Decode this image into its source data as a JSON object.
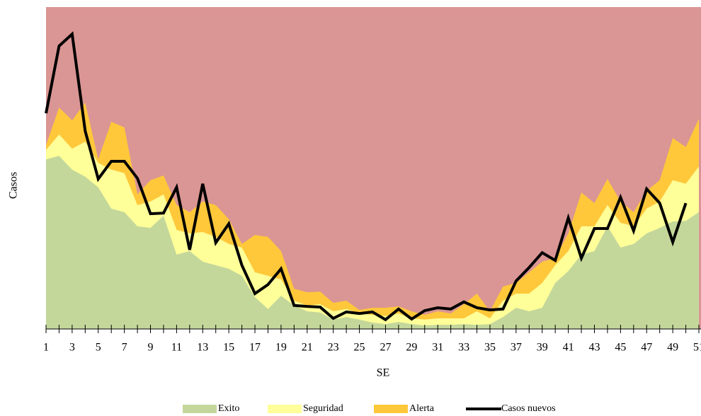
{
  "chart_data": {
    "type": "area",
    "stacked": true,
    "x_label": "SE",
    "y_label": "Casos",
    "x": [
      1,
      2,
      3,
      4,
      5,
      6,
      7,
      8,
      9,
      10,
      11,
      12,
      13,
      14,
      15,
      16,
      17,
      18,
      19,
      20,
      21,
      22,
      23,
      24,
      25,
      26,
      27,
      28,
      29,
      30,
      31,
      32,
      33,
      34,
      35,
      36,
      37,
      38,
      39,
      40,
      41,
      42,
      43,
      44,
      45,
      46,
      47,
      48,
      49,
      50,
      51
    ],
    "xlim": [
      1,
      51
    ],
    "xticks": [
      1,
      3,
      5,
      7,
      9,
      11,
      13,
      15,
      17,
      19,
      21,
      23,
      25,
      27,
      29,
      31,
      33,
      35,
      37,
      39,
      41,
      43,
      45,
      47,
      49,
      51
    ],
    "x_minor_ticks": [
      2,
      4,
      6,
      8,
      10,
      12,
      14,
      16,
      18,
      20,
      22,
      24,
      26,
      28,
      30,
      32,
      34,
      36,
      38,
      40,
      42,
      44,
      46,
      48,
      50
    ],
    "ylim": [
      0,
      100
    ],
    "plot_background": "#da9694",
    "legend": "bottom",
    "series": [
      {
        "name": "Exito",
        "color": "#c4d79b",
        "values": [
          52.7,
          53.8,
          49.5,
          47.3,
          44,
          37.4,
          36.3,
          31.9,
          31.4,
          35.2,
          23.1,
          24.2,
          20.9,
          19.8,
          18.7,
          16.5,
          9.9,
          6.2,
          10.3,
          7.3,
          5.5,
          5.1,
          2.9,
          3.7,
          2.9,
          2,
          1.5,
          2.2,
          1.5,
          1.1,
          1.3,
          1.3,
          1.5,
          1.3,
          1.5,
          3.7,
          6.6,
          5.5,
          6.6,
          14.3,
          18,
          23.1,
          24.2,
          31.9,
          25.3,
          26.4,
          29.7,
          31.4,
          33.4,
          33.6,
          36.3
        ]
      },
      {
        "name": "Seguridad",
        "color": "#ffff99",
        "values": [
          2.9,
          6.6,
          6.5,
          10.9,
          7.6,
          12.1,
          12.1,
          6.6,
          8.2,
          6.6,
          7.7,
          5.5,
          9.2,
          8.8,
          7.7,
          8.8,
          7.7,
          10.3,
          5.1,
          1.5,
          1.8,
          2.6,
          2.6,
          2.5,
          1.9,
          2.4,
          2.5,
          2.6,
          1.8,
          1.8,
          2,
          2,
          1.8,
          4.2,
          1.8,
          5.1,
          4.4,
          5.5,
          7.7,
          5.5,
          6.2,
          8.8,
          7.7,
          6.6,
          7.7,
          5.5,
          7.7,
          8.2,
          12.8,
          11.5,
          14.2
        ]
      },
      {
        "name": "Alerta",
        "color": "#ffc83a",
        "values": [
          1.5,
          8.4,
          8.8,
          12.1,
          1.1,
          14.9,
          14.2,
          3.3,
          6.6,
          5.9,
          7.7,
          6.6,
          9.5,
          9.9,
          7.7,
          1.1,
          11.6,
          12.1,
          8.8,
          3.7,
          4.1,
          3.9,
          2.6,
          2.6,
          1.1,
          2.2,
          2.6,
          2.2,
          2.2,
          1.5,
          2.2,
          1.5,
          4.4,
          5.5,
          2.2,
          4.4,
          3.3,
          6.6,
          6.6,
          2.2,
          5.5,
          10.5,
          7.2,
          8.1,
          6.6,
          4.4,
          5.5,
          6.6,
          13.1,
          11.4,
          14.8
        ]
      },
      {
        "name": "Casos nuevos",
        "type": "line",
        "color": "#000000",
        "values": [
          67,
          87.9,
          91.6,
          61.5,
          46.6,
          52.1,
          52.1,
          46.8,
          35.8,
          36,
          44,
          24.6,
          45.1,
          26.8,
          32.7,
          19.8,
          11,
          13.8,
          18.7,
          7.3,
          7,
          6.8,
          3.3,
          5.3,
          4.8,
          5.3,
          2.9,
          6.2,
          3.1,
          5.7,
          6.6,
          6.2,
          8.4,
          6.6,
          5.9,
          6.2,
          14.9,
          19.1,
          23.7,
          21.3,
          34.5,
          22,
          31.2,
          31.2,
          40.9,
          30.5,
          43.5,
          39.1,
          27,
          39.1,
          null
        ]
      }
    ]
  }
}
